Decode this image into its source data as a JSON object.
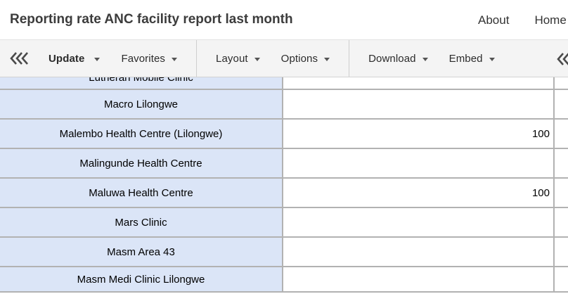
{
  "header": {
    "title": "Reporting rate ANC facility report last month",
    "nav": [
      {
        "label": "About"
      },
      {
        "label": "Home"
      }
    ]
  },
  "toolbar": {
    "items": [
      {
        "type": "button",
        "label": "Update",
        "caret": true,
        "emphasis": true
      },
      {
        "type": "button",
        "label": "Favorites",
        "caret": true
      },
      {
        "type": "divider"
      },
      {
        "type": "button",
        "label": "Layout",
        "caret": true
      },
      {
        "type": "button",
        "label": "Options",
        "caret": true
      },
      {
        "type": "divider"
      },
      {
        "type": "button",
        "label": "Download",
        "caret": true
      },
      {
        "type": "button",
        "label": "Embed",
        "caret": true
      }
    ],
    "collapse_left_icon": "triple-chevron-left-icon",
    "collapse_right_icon": "triple-chevron-left-icon"
  },
  "table": {
    "rows": [
      {
        "facility": "Lutheran Mobile Clinic",
        "value": "",
        "partially_visible": true
      },
      {
        "facility": "Macro Lilongwe",
        "value": ""
      },
      {
        "facility": "Malembo Health Centre (Lilongwe)",
        "value": "100"
      },
      {
        "facility": "Malingunde Health Centre",
        "value": ""
      },
      {
        "facility": "Maluwa Health Centre",
        "value": "100"
      },
      {
        "facility": "Mars Clinic",
        "value": ""
      },
      {
        "facility": "Masm Area 43",
        "value": ""
      },
      {
        "facility": "Masm Medi Clinic Lilongwe",
        "value": ""
      }
    ]
  },
  "colors": {
    "row_header_bg": "#dbe5f7",
    "table_border": "#b2b2b2",
    "toolbar_bg": "#f4f4f4",
    "header_text": "#3c3c3c"
  }
}
